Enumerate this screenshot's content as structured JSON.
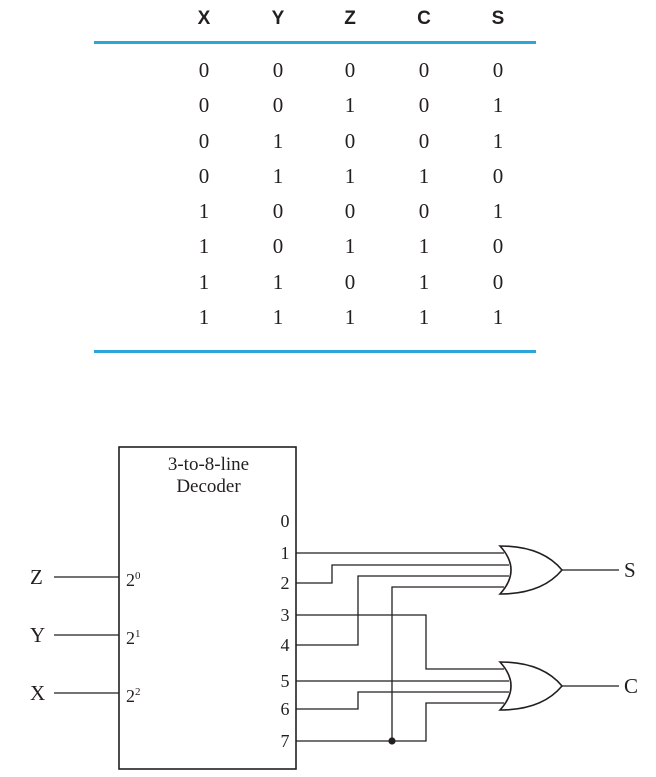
{
  "truth_table": {
    "headers": [
      "X",
      "Y",
      "Z",
      "C",
      "S"
    ],
    "rows": [
      [
        "0",
        "0",
        "0",
        "0",
        "0"
      ],
      [
        "0",
        "0",
        "1",
        "0",
        "1"
      ],
      [
        "0",
        "1",
        "0",
        "0",
        "1"
      ],
      [
        "0",
        "1",
        "1",
        "1",
        "0"
      ],
      [
        "1",
        "0",
        "0",
        "0",
        "1"
      ],
      [
        "1",
        "0",
        "1",
        "1",
        "0"
      ],
      [
        "1",
        "1",
        "0",
        "1",
        "0"
      ],
      [
        "1",
        "1",
        "1",
        "1",
        "1"
      ]
    ],
    "rule_color": "#2aa6d8"
  },
  "decoder": {
    "title_line1": "3-to-8-line",
    "title_line2": "Decoder",
    "inputs": [
      {
        "signal": "Z",
        "base": "2",
        "exp": "0"
      },
      {
        "signal": "Y",
        "base": "2",
        "exp": "1"
      },
      {
        "signal": "X",
        "base": "2",
        "exp": "2"
      }
    ],
    "outputs": [
      "0",
      "1",
      "2",
      "3",
      "4",
      "5",
      "6",
      "7"
    ]
  },
  "gate_outputs": {
    "top": "S",
    "bottom": "C"
  }
}
